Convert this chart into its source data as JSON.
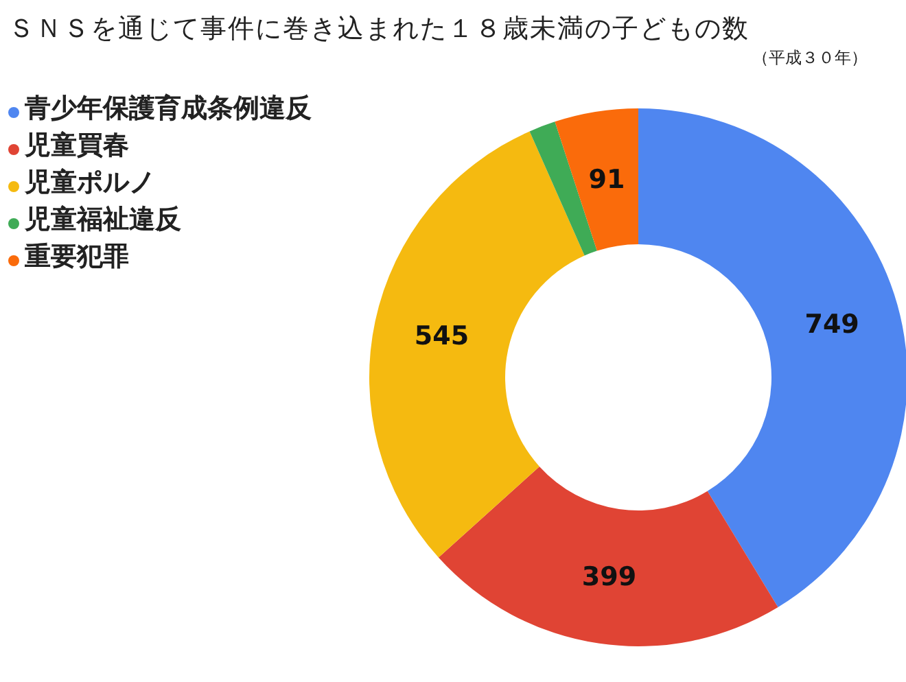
{
  "chart_data": {
    "type": "donut",
    "title": "ＳＮＳを通じて事件に巻き込まれた１８歳未満の子どもの数",
    "subtitle": "（平成３０年）",
    "categories": [
      "青少年保護育成条例違反",
      "児童買春",
      "児童ポルノ",
      "児童福祉違反",
      "重要犯罪"
    ],
    "values": [
      749,
      399,
      545,
      29,
      91
    ],
    "value_labels": [
      "749",
      "399",
      "545",
      null,
      "91"
    ],
    "colors": [
      "#4f86f0",
      "#e04434",
      "#f5ba10",
      "#3fab56",
      "#fa6b0b"
    ],
    "legend": "top left"
  }
}
